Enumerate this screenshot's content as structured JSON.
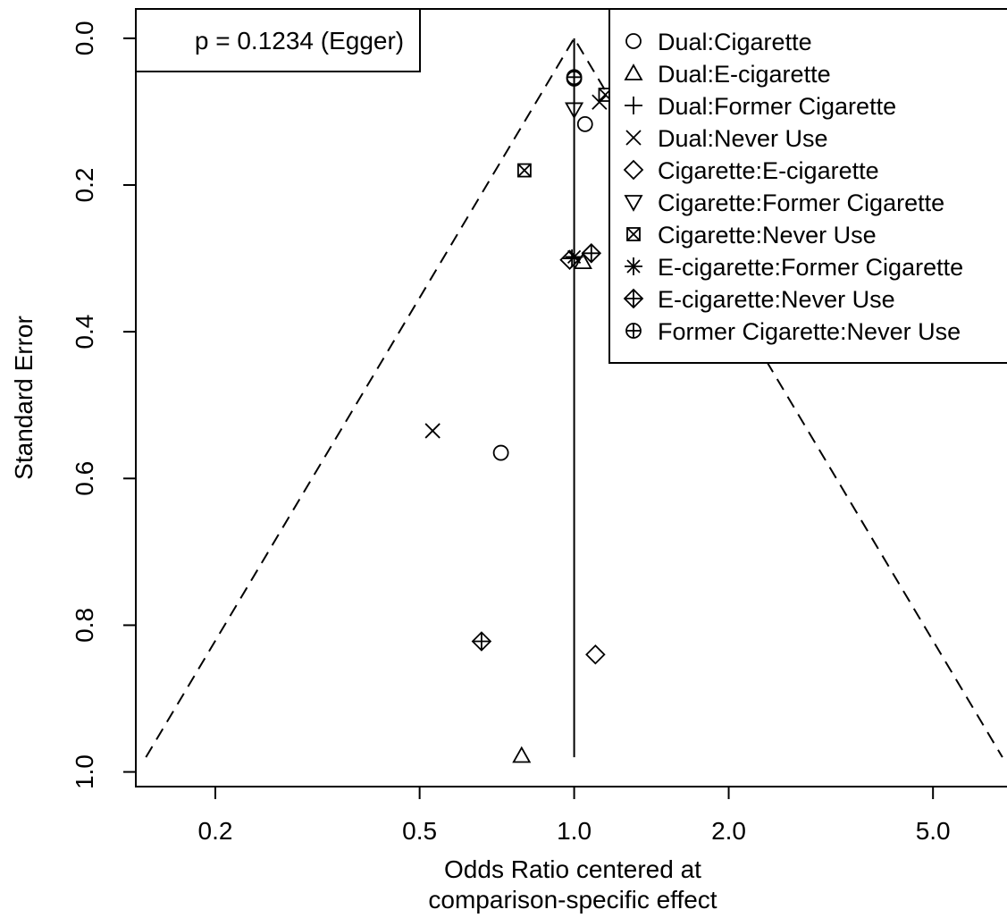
{
  "chart_data": {
    "type": "scatter",
    "title": "",
    "xlabel_lines": [
      "Odds Ratio centered at",
      "comparison-specific effect"
    ],
    "ylabel": "Standard Error",
    "x_scale": "log",
    "xlim": [
      0.14,
      7.4
    ],
    "ylim": [
      1.02,
      -0.04
    ],
    "y_reversed": true,
    "x_ticks": [
      {
        "value": 0.2,
        "label": "0.2"
      },
      {
        "value": 0.5,
        "label": "0.5"
      },
      {
        "value": 1.0,
        "label": "1.0"
      },
      {
        "value": 2.0,
        "label": "2.0"
      },
      {
        "value": 5.0,
        "label": "5.0"
      }
    ],
    "y_ticks": [
      {
        "value": 0.0,
        "label": "0.0"
      },
      {
        "value": 0.2,
        "label": "0.2"
      },
      {
        "value": 0.4,
        "label": "0.4"
      },
      {
        "value": 0.6,
        "label": "0.6"
      },
      {
        "value": 0.8,
        "label": "0.8"
      },
      {
        "value": 1.0,
        "label": "1.0"
      }
    ],
    "annotation": "p = 0.1234 (Egger)",
    "funnel": {
      "center": 1.0,
      "se_max": 0.98,
      "z": 1.96
    },
    "legend_position": "top-right",
    "series": [
      {
        "name": "Dual:Cigarette",
        "symbol": "circle",
        "points": [
          {
            "x": 1.0,
            "y": 0.055
          },
          {
            "x": 1.05,
            "y": 0.117
          },
          {
            "x": 0.72,
            "y": 0.565
          }
        ]
      },
      {
        "name": "Dual:E-cigarette",
        "symbol": "triangle-up",
        "points": [
          {
            "x": 1.04,
            "y": 0.305
          },
          {
            "x": 0.79,
            "y": 0.978
          }
        ]
      },
      {
        "name": "Dual:Former Cigarette",
        "symbol": "plus",
        "points": [
          {
            "x": 0.99,
            "y": 0.3
          }
        ]
      },
      {
        "name": "Dual:Never Use",
        "symbol": "cross",
        "points": [
          {
            "x": 1.12,
            "y": 0.087
          },
          {
            "x": 0.53,
            "y": 0.535
          }
        ]
      },
      {
        "name": "Cigarette:E-cigarette",
        "symbol": "diamond",
        "points": [
          {
            "x": 0.98,
            "y": 0.302
          },
          {
            "x": 1.1,
            "y": 0.84
          }
        ]
      },
      {
        "name": "Cigarette:Former Cigarette",
        "symbol": "triangle-down",
        "points": [
          {
            "x": 1.0,
            "y": 0.097
          }
        ]
      },
      {
        "name": "Cigarette:Never Use",
        "symbol": "square-cross",
        "points": [
          {
            "x": 1.15,
            "y": 0.077
          },
          {
            "x": 0.8,
            "y": 0.18
          }
        ]
      },
      {
        "name": "E-cigarette:Former Cigarette",
        "symbol": "asterisk",
        "points": [
          {
            "x": 1.0,
            "y": 0.298
          }
        ]
      },
      {
        "name": "E-cigarette:Never Use",
        "symbol": "diamond-plus",
        "points": [
          {
            "x": 1.08,
            "y": 0.293
          },
          {
            "x": 0.66,
            "y": 0.822
          }
        ]
      },
      {
        "name": "Former Cigarette:Never Use",
        "symbol": "circle-plus",
        "points": [
          {
            "x": 1.0,
            "y": 0.053
          }
        ]
      }
    ]
  }
}
